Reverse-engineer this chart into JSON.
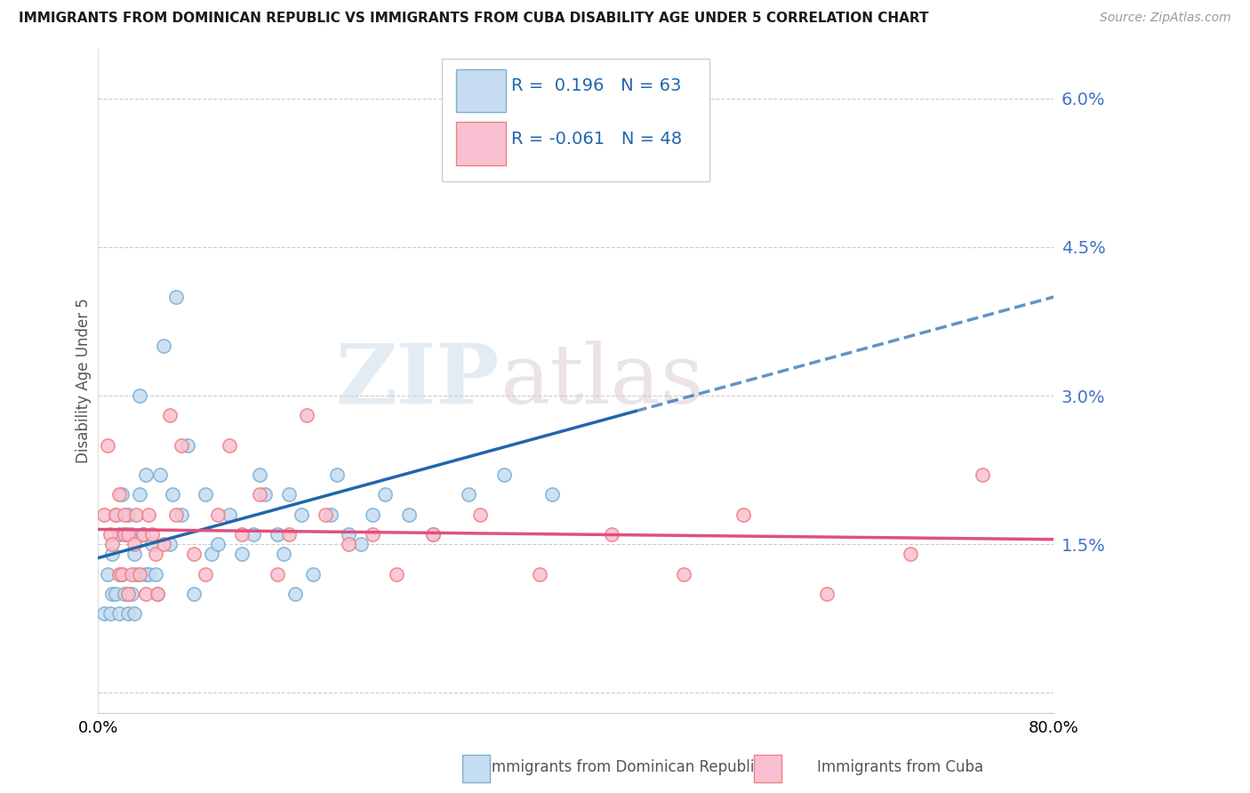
{
  "title": "IMMIGRANTS FROM DOMINICAN REPUBLIC VS IMMIGRANTS FROM CUBA DISABILITY AGE UNDER 5 CORRELATION CHART",
  "source": "Source: ZipAtlas.com",
  "ylabel": "Disability Age Under 5",
  "R1": 0.196,
  "N1": 63,
  "R2": -0.061,
  "N2": 48,
  "yticks": [
    0.0,
    0.015,
    0.03,
    0.045,
    0.06
  ],
  "ytick_labels": [
    "",
    "1.5%",
    "3.0%",
    "4.5%",
    "6.0%"
  ],
  "color1_edge": "#7bafd4",
  "color2_edge": "#f08080",
  "color1_fill": "#c6dcf0",
  "color2_fill": "#f8c0d0",
  "trend1_color": "#2166ac",
  "trend2_color": "#e05080",
  "legend1_label": "Immigrants from Dominican Republic",
  "legend2_label": "Immigrants from Cuba",
  "scatter1_x": [
    0.005,
    0.008,
    0.01,
    0.012,
    0.012,
    0.015,
    0.015,
    0.018,
    0.018,
    0.02,
    0.02,
    0.022,
    0.022,
    0.025,
    0.025,
    0.028,
    0.028,
    0.03,
    0.03,
    0.032,
    0.035,
    0.035,
    0.038,
    0.04,
    0.04,
    0.042,
    0.045,
    0.048,
    0.05,
    0.052,
    0.055,
    0.06,
    0.062,
    0.065,
    0.07,
    0.075,
    0.08,
    0.09,
    0.095,
    0.1,
    0.11,
    0.12,
    0.13,
    0.135,
    0.14,
    0.15,
    0.155,
    0.16,
    0.165,
    0.17,
    0.18,
    0.195,
    0.2,
    0.21,
    0.22,
    0.23,
    0.24,
    0.26,
    0.28,
    0.31,
    0.34,
    0.38,
    0.42
  ],
  "scatter1_y": [
    0.008,
    0.012,
    0.008,
    0.01,
    0.014,
    0.01,
    0.018,
    0.008,
    0.016,
    0.012,
    0.02,
    0.01,
    0.016,
    0.008,
    0.018,
    0.01,
    0.016,
    0.008,
    0.014,
    0.012,
    0.02,
    0.03,
    0.016,
    0.012,
    0.022,
    0.012,
    0.015,
    0.012,
    0.01,
    0.022,
    0.035,
    0.015,
    0.02,
    0.04,
    0.018,
    0.025,
    0.01,
    0.02,
    0.014,
    0.015,
    0.018,
    0.014,
    0.016,
    0.022,
    0.02,
    0.016,
    0.014,
    0.02,
    0.01,
    0.018,
    0.012,
    0.018,
    0.022,
    0.016,
    0.015,
    0.018,
    0.02,
    0.018,
    0.016,
    0.02,
    0.022,
    0.02,
    0.055
  ],
  "scatter2_x": [
    0.005,
    0.008,
    0.01,
    0.012,
    0.015,
    0.018,
    0.018,
    0.02,
    0.022,
    0.022,
    0.025,
    0.025,
    0.028,
    0.03,
    0.032,
    0.035,
    0.038,
    0.04,
    0.042,
    0.045,
    0.048,
    0.05,
    0.055,
    0.06,
    0.065,
    0.07,
    0.08,
    0.09,
    0.1,
    0.11,
    0.12,
    0.135,
    0.15,
    0.16,
    0.175,
    0.19,
    0.21,
    0.23,
    0.25,
    0.28,
    0.32,
    0.37,
    0.43,
    0.49,
    0.54,
    0.61,
    0.68,
    0.74
  ],
  "scatter2_y": [
    0.018,
    0.025,
    0.016,
    0.015,
    0.018,
    0.012,
    0.02,
    0.012,
    0.016,
    0.018,
    0.01,
    0.016,
    0.012,
    0.015,
    0.018,
    0.012,
    0.016,
    0.01,
    0.018,
    0.016,
    0.014,
    0.01,
    0.015,
    0.028,
    0.018,
    0.025,
    0.014,
    0.012,
    0.018,
    0.025,
    0.016,
    0.02,
    0.012,
    0.016,
    0.028,
    0.018,
    0.015,
    0.016,
    0.012,
    0.016,
    0.018,
    0.012,
    0.016,
    0.012,
    0.018,
    0.01,
    0.014,
    0.022
  ],
  "xlim": [
    0.0,
    0.8
  ],
  "ylim": [
    -0.002,
    0.065
  ],
  "watermark_zip": "ZIP",
  "watermark_atlas": "atlas",
  "background_color": "#ffffff"
}
